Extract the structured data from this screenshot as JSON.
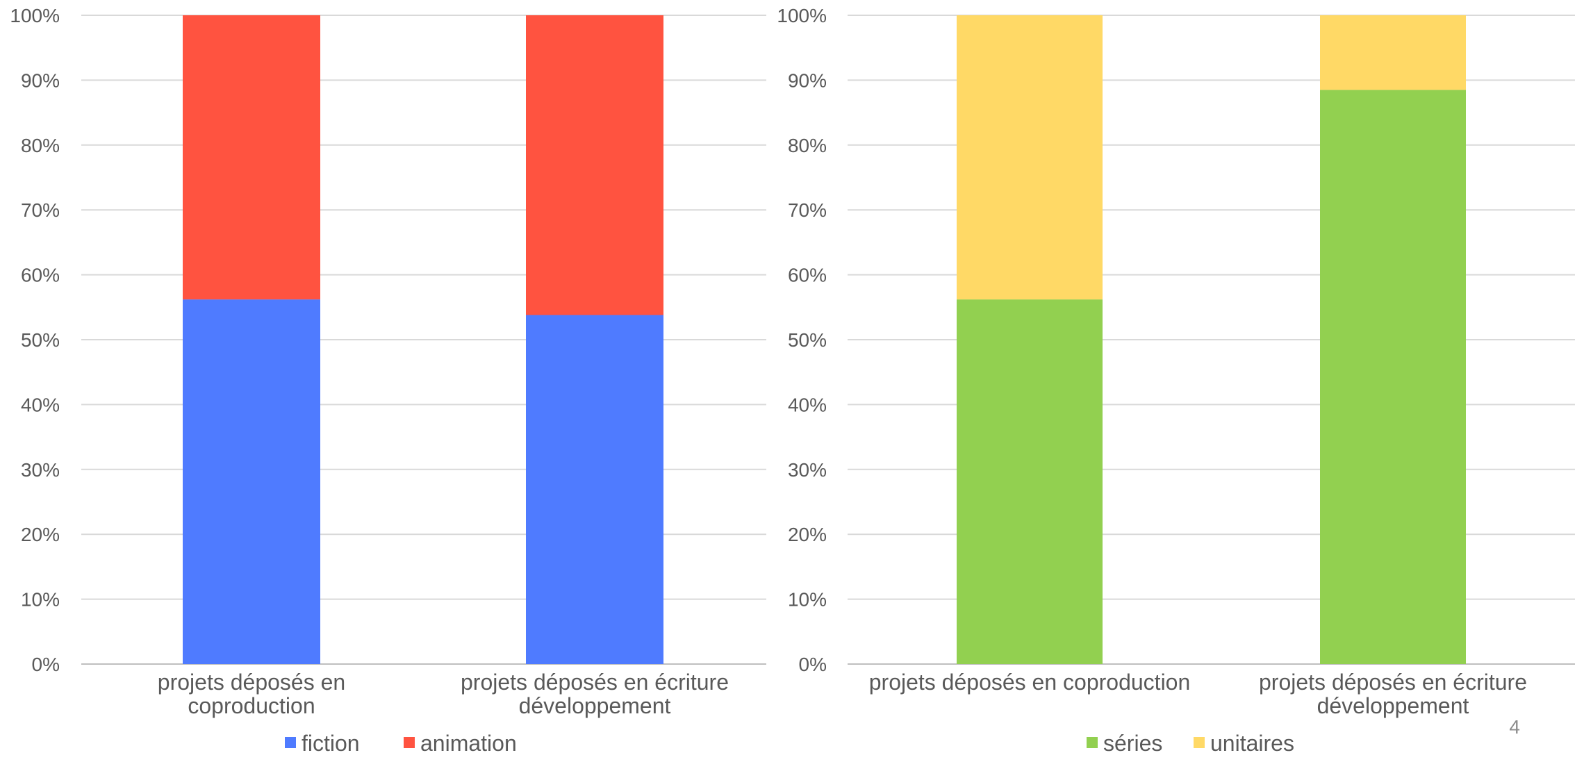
{
  "page_number": "4",
  "chart_data": [
    {
      "type": "bar",
      "stacked": "percent",
      "ylim": [
        0,
        100
      ],
      "yticks": [
        "0%",
        "10%",
        "20%",
        "30%",
        "40%",
        "50%",
        "60%",
        "70%",
        "80%",
        "90%",
        "100%"
      ],
      "grid": true,
      "legend_position": "bottom",
      "categories": [
        [
          "projets déposés en",
          "coproduction"
        ],
        [
          "projets déposés en écriture",
          "développement"
        ]
      ],
      "series": [
        {
          "name": "fiction",
          "color": "#4f7bff",
          "values": [
            56.2,
            53.8
          ]
        },
        {
          "name": "animation",
          "color": "#ff5340",
          "values": [
            43.8,
            46.2
          ]
        }
      ]
    },
    {
      "type": "bar",
      "stacked": "percent",
      "ylim": [
        0,
        100
      ],
      "yticks": [
        "0%",
        "10%",
        "20%",
        "30%",
        "40%",
        "50%",
        "60%",
        "70%",
        "80%",
        "90%",
        "100%"
      ],
      "grid": true,
      "legend_position": "bottom",
      "categories": [
        [
          "projets déposés en coproduction"
        ],
        [
          "projets déposés en écriture",
          "développement"
        ]
      ],
      "series": [
        {
          "name": "séries",
          "color": "#92d050",
          "values": [
            56.2,
            88.5
          ]
        },
        {
          "name": "unitaires",
          "color": "#ffd966",
          "values": [
            43.8,
            11.5
          ]
        }
      ]
    }
  ]
}
